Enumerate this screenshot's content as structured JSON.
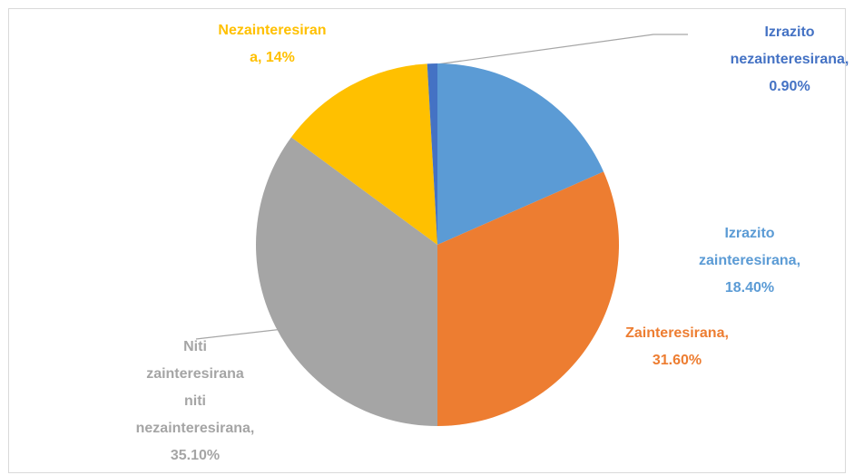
{
  "chart_data": {
    "type": "pie",
    "labels": [
      "Izrazito zainteresirana, 18.40%",
      "Zainteresirana, 31.60%",
      "Niti zainteresirana niti nezainteresirana, 35.10%",
      "Nezainteresirana, 14%",
      "Izrazito nezainteresirana, 0.90%"
    ],
    "values": [
      18.4,
      31.6,
      35.1,
      14,
      0.9
    ],
    "colors": [
      "#5b9bd5",
      "#ed7d31",
      "#a5a5a5",
      "#ffc000",
      "#4472c4"
    ]
  }
}
